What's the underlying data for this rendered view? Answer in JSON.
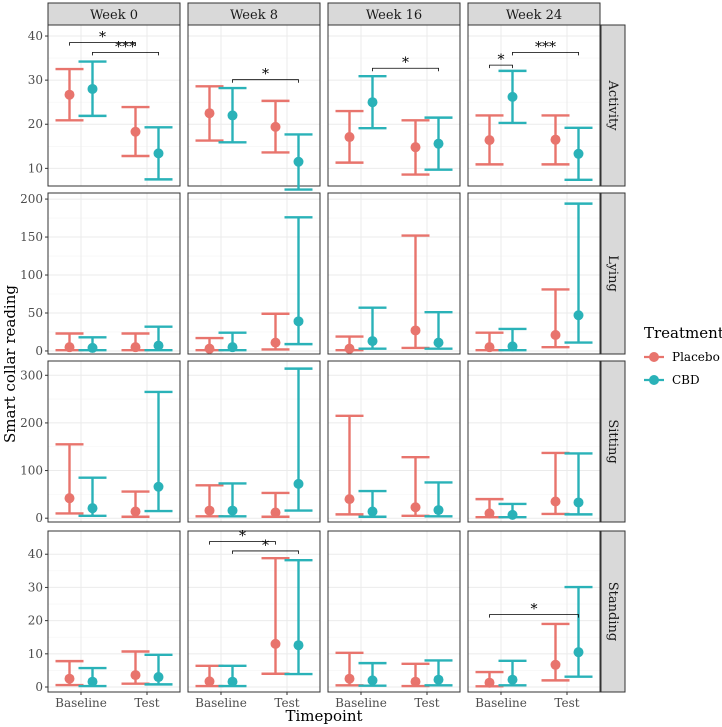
{
  "chart_data": {
    "type": "errorbar",
    "facet_columns": [
      "Week 0",
      "Week 8",
      "Week 16",
      "Week 24"
    ],
    "facet_rows": [
      "Activity",
      "Lying",
      "Sitting",
      "Standing"
    ],
    "categories": [
      "Baseline",
      "Test"
    ],
    "xlabel": "Timepoint",
    "ylabel": "Smart collar reading",
    "legend": {
      "title": "Treatment",
      "entries": [
        {
          "name": "Placebo",
          "color": "#E8746D"
        },
        {
          "name": "CBD",
          "color": "#2AB2B8"
        }
      ]
    },
    "y_scales": {
      "Activity": {
        "ylim": [
          6,
          42.5
        ],
        "ticks": [
          10,
          20,
          30,
          40
        ]
      },
      "Lying": {
        "ylim": [
          -4,
          208
        ],
        "ticks": [
          0,
          50,
          100,
          150,
          200
        ]
      },
      "Sitting": {
        "ylim": [
          -8,
          330
        ],
        "ticks": [
          0,
          100,
          200,
          300
        ]
      },
      "Standing": {
        "ylim": [
          -1.5,
          47
        ],
        "ticks": [
          0,
          10,
          20,
          30,
          40
        ]
      }
    },
    "data": {
      "Activity": {
        "Week 0": {
          "Placebo": {
            "Baseline": [
              26.7,
              20.9,
              32.5
            ],
            "Test": [
              18.3,
              12.8,
              23.9
            ]
          },
          "CBD": {
            "Baseline": [
              28.0,
              21.9,
              34.2
            ],
            "Test": [
              13.4,
              7.5,
              19.3
            ]
          }
        },
        "Week 8": {
          "Placebo": {
            "Baseline": [
              22.5,
              16.3,
              28.6
            ],
            "Test": [
              19.4,
              13.6,
              25.3
            ]
          },
          "CBD": {
            "Baseline": [
              22.0,
              15.9,
              28.2
            ],
            "Test": [
              11.5,
              5.2,
              17.7
            ]
          }
        },
        "Week 16": {
          "Placebo": {
            "Baseline": [
              17.1,
              11.3,
              23.0
            ],
            "Test": [
              14.8,
              8.6,
              20.9
            ]
          },
          "CBD": {
            "Baseline": [
              25.0,
              19.1,
              30.9
            ],
            "Test": [
              15.6,
              9.7,
              21.5
            ]
          }
        },
        "Week 24": {
          "Placebo": {
            "Baseline": [
              16.4,
              10.9,
              22.0
            ],
            "Test": [
              16.5,
              10.9,
              22.0
            ]
          },
          "CBD": {
            "Baseline": [
              26.2,
              20.3,
              32.1
            ],
            "Test": [
              13.3,
              7.4,
              19.2
            ]
          }
        }
      },
      "Lying": {
        "Week 0": {
          "Placebo": {
            "Baseline": [
              5,
              1,
              23
            ],
            "Test": [
              5,
              1,
              23
            ]
          },
          "CBD": {
            "Baseline": [
              4,
              1,
              18
            ],
            "Test": [
              7,
              1,
              32
            ]
          }
        },
        "Week 8": {
          "Placebo": {
            "Baseline": [
              3,
              1,
              17
            ],
            "Test": [
              11,
              2,
              49
            ]
          },
          "CBD": {
            "Baseline": [
              5,
              1,
              24
            ],
            "Test": [
              39,
              9,
              176
            ]
          }
        },
        "Week 16": {
          "Placebo": {
            "Baseline": [
              3,
              1,
              19
            ],
            "Test": [
              27,
              4,
              152
            ]
          },
          "CBD": {
            "Baseline": [
              13,
              3,
              57
            ],
            "Test": [
              11,
              3,
              51
            ]
          }
        },
        "Week 24": {
          "Placebo": {
            "Baseline": [
              5,
              1,
              24
            ],
            "Test": [
              21,
              5,
              81
            ]
          },
          "CBD": {
            "Baseline": [
              6,
              1,
              29
            ],
            "Test": [
              47,
              11,
              194
            ]
          }
        }
      },
      "Sitting": {
        "Week 0": {
          "Placebo": {
            "Baseline": [
              42,
              10,
              155
            ],
            "Test": [
              14,
              3,
              56
            ]
          },
          "CBD": {
            "Baseline": [
              21,
              5,
              85
            ],
            "Test": [
              66,
              15,
              265
            ]
          }
        },
        "Week 8": {
          "Placebo": {
            "Baseline": [
              16,
              4,
              69
            ],
            "Test": [
              12,
              3,
              53
            ]
          },
          "CBD": {
            "Baseline": [
              16,
              4,
              73
            ],
            "Test": [
              72,
              16,
              314
            ]
          }
        },
        "Week 16": {
          "Placebo": {
            "Baseline": [
              40,
              8,
              215
            ],
            "Test": [
              23,
              5,
              128
            ]
          },
          "CBD": {
            "Baseline": [
              14,
              3,
              57
            ],
            "Test": [
              17,
              4,
              75
            ]
          }
        },
        "Week 24": {
          "Placebo": {
            "Baseline": [
              10,
              2,
              40
            ],
            "Test": [
              35,
              9,
              137
            ]
          },
          "CBD": {
            "Baseline": [
              7,
              2,
              30
            ],
            "Test": [
              33,
              8,
              136
            ]
          }
        }
      },
      "Standing": {
        "Week 0": {
          "Placebo": {
            "Baseline": [
              2.5,
              0.6,
              7.8
            ],
            "Test": [
              3.6,
              1.0,
              10.7
            ]
          },
          "CBD": {
            "Baseline": [
              1.6,
              0.3,
              5.7
            ],
            "Test": [
              3.0,
              0.8,
              9.7
            ]
          }
        },
        "Week 8": {
          "Placebo": {
            "Baseline": [
              1.7,
              0.3,
              6.4
            ],
            "Test": [
              13.0,
              4.0,
              38.8
            ]
          },
          "CBD": {
            "Baseline": [
              1.6,
              0.3,
              6.4
            ],
            "Test": [
              12.6,
              3.9,
              38.2
            ]
          }
        },
        "Week 16": {
          "Placebo": {
            "Baseline": [
              2.5,
              0.5,
              10.3
            ],
            "Test": [
              1.6,
              0.3,
              7.0
            ]
          },
          "CBD": {
            "Baseline": [
              2.0,
              0.4,
              7.2
            ],
            "Test": [
              2.2,
              0.5,
              8.0
            ]
          }
        },
        "Week 24": {
          "Placebo": {
            "Baseline": [
              1.3,
              0.2,
              4.5
            ],
            "Test": [
              6.7,
              2.0,
              19.0
            ]
          },
          "CBD": {
            "Baseline": [
              2.2,
              0.5,
              7.9
            ],
            "Test": [
              10.5,
              3.1,
              30.1
            ]
          }
        }
      }
    },
    "significance": [
      {
        "row": "Activity",
        "col": "Week 0",
        "from": {
          "group": "Placebo",
          "x": "Baseline"
        },
        "to": {
          "group": "Placebo",
          "x": "Test"
        },
        "y": 38.5,
        "label": "*"
      },
      {
        "row": "Activity",
        "col": "Week 0",
        "from": {
          "group": "CBD",
          "x": "Baseline"
        },
        "to": {
          "group": "CBD",
          "x": "Test"
        },
        "y": 36.3,
        "label": "***"
      },
      {
        "row": "Activity",
        "col": "Week 8",
        "from": {
          "group": "CBD",
          "x": "Baseline"
        },
        "to": {
          "group": "CBD",
          "x": "Test"
        },
        "y": 30.1,
        "label": "*"
      },
      {
        "row": "Activity",
        "col": "Week 16",
        "from": {
          "group": "CBD",
          "x": "Baseline"
        },
        "to": {
          "group": "CBD",
          "x": "Test"
        },
        "y": 32.7,
        "label": "*"
      },
      {
        "row": "Activity",
        "col": "Week 24",
        "from": {
          "group": "Placebo",
          "x": "Baseline"
        },
        "to": {
          "group": "CBD",
          "x": "Baseline"
        },
        "y": 33.4,
        "label": "*"
      },
      {
        "row": "Activity",
        "col": "Week 24",
        "from": {
          "group": "CBD",
          "x": "Baseline"
        },
        "to": {
          "group": "CBD",
          "x": "Test"
        },
        "y": 36.3,
        "label": "***"
      },
      {
        "row": "Standing",
        "col": "Week 8",
        "from": {
          "group": "Placebo",
          "x": "Baseline"
        },
        "to": {
          "group": "Placebo",
          "x": "Test"
        },
        "y": 43.8,
        "label": "*"
      },
      {
        "row": "Standing",
        "col": "Week 8",
        "from": {
          "group": "CBD",
          "x": "Baseline"
        },
        "to": {
          "group": "CBD",
          "x": "Test"
        },
        "y": 41.0,
        "label": "*"
      },
      {
        "row": "Standing",
        "col": "Week 24",
        "from": {
          "group": "Placebo",
          "x": "Baseline"
        },
        "to": {
          "group": "CBD",
          "x": "Test"
        },
        "y": 21.8,
        "label": "*"
      }
    ]
  }
}
